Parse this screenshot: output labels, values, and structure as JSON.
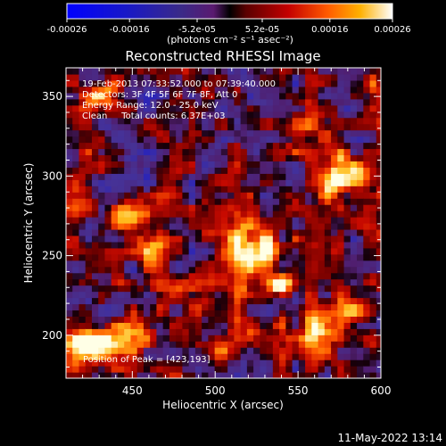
{
  "chart_data": {
    "type": "heatmap",
    "title": "Reconstructed RHESSI Image",
    "xlabel": "Heliocentric X (arcsec)",
    "ylabel": "Heliocentric Y (arcsec)",
    "xlim": [
      410,
      600
    ],
    "ylim": [
      173,
      368
    ],
    "xticks": [
      "450",
      "500",
      "550",
      "600"
    ],
    "xtick_values": [
      450,
      500,
      550,
      600
    ],
    "yticks": [
      "200",
      "250",
      "300",
      "350"
    ],
    "ytick_values": [
      200,
      250,
      300,
      350
    ],
    "colorbar": {
      "min": -0.00026,
      "max": 0.00026,
      "ticks": [
        "-0.00026",
        "-0.00016",
        "-5.2e-05",
        "5.2e-05",
        "0.00016",
        "0.00026"
      ],
      "tick_values": [
        -0.00026,
        -0.00016,
        -5.2e-05,
        5.2e-05,
        0.00016,
        0.00026
      ],
      "units_label": "(photons cm⁻² s⁻¹ asec⁻²)"
    },
    "annotations": [
      "19-Feb-2013 07:33:52.000 to 07:39:40.000",
      "Detectors: 3F 4F 5F 6F 7F 8F, Att 0",
      "Energy Range: 12.0 - 25.0 keV",
      "Clean     Total counts: 6.37E+03"
    ],
    "peak_label": "Position of Peak = [423,193]",
    "peak": [
      423,
      193
    ],
    "sources": [
      {
        "x": 423,
        "y": 193,
        "amp": 1.0,
        "sx": 9,
        "sy": 7
      },
      {
        "x": 445,
        "y": 197,
        "amp": 0.75,
        "sx": 10,
        "sy": 6
      },
      {
        "x": 515,
        "y": 248,
        "amp": 0.85,
        "sx": 7,
        "sy": 18
      },
      {
        "x": 540,
        "y": 232,
        "amp": 0.95,
        "sx": 6,
        "sy": 5
      },
      {
        "x": 532,
        "y": 255,
        "amp": 0.6,
        "sx": 8,
        "sy": 8
      },
      {
        "x": 573,
        "y": 300,
        "amp": 0.8,
        "sx": 7,
        "sy": 9
      },
      {
        "x": 588,
        "y": 300,
        "amp": 0.6,
        "sx": 6,
        "sy": 6
      },
      {
        "x": 563,
        "y": 205,
        "amp": 0.75,
        "sx": 9,
        "sy": 9
      },
      {
        "x": 582,
        "y": 215,
        "amp": 0.55,
        "sx": 6,
        "sy": 6
      },
      {
        "x": 450,
        "y": 275,
        "amp": 0.55,
        "sx": 8,
        "sy": 6
      },
      {
        "x": 432,
        "y": 352,
        "amp": 0.6,
        "sx": 9,
        "sy": 6
      },
      {
        "x": 463,
        "y": 252,
        "amp": 0.45,
        "sx": 6,
        "sy": 6
      },
      {
        "x": 475,
        "y": 228,
        "amp": 0.5,
        "sx": 10,
        "sy": 7
      },
      {
        "x": 553,
        "y": 330,
        "amp": 0.45,
        "sx": 12,
        "sy": 7
      },
      {
        "x": 597,
        "y": 355,
        "amp": 0.5,
        "sx": 5,
        "sy": 9
      },
      {
        "x": 500,
        "y": 195,
        "amp": 0.4,
        "sx": 8,
        "sy": 7
      },
      {
        "x": 415,
        "y": 290,
        "amp": 0.5,
        "sx": 6,
        "sy": 10
      }
    ],
    "noise_amplitude": 0.42,
    "grid": false,
    "legend": "none"
  },
  "footer": {
    "timestamp": "11-May-2022 13:14"
  }
}
